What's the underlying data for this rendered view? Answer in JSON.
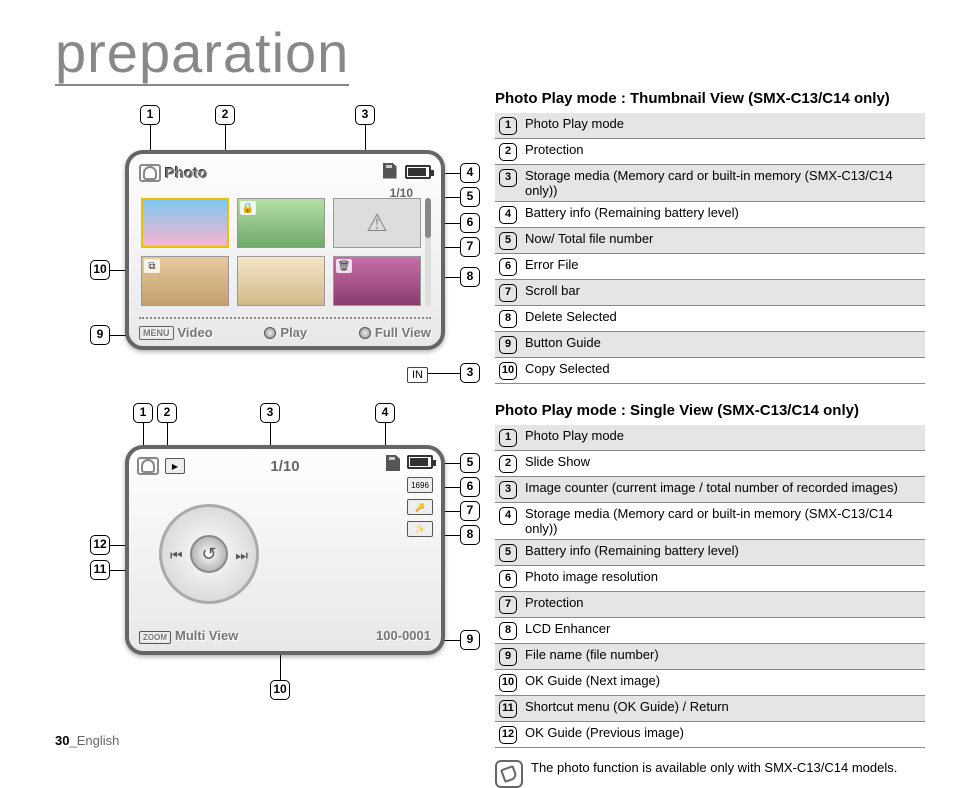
{
  "page_title": "preparation",
  "page_number": "30",
  "page_lang": "English",
  "screen1": {
    "mode_label": "Photo",
    "counter": "1/10",
    "guide": {
      "video": "Video",
      "play": "Play",
      "fullview": "Full View"
    },
    "in_tag": "IN",
    "warn_glyph": "⚠"
  },
  "screen2": {
    "counter": "1/10",
    "res_label": "1696",
    "multiview": "Multi View",
    "filename": "100-0001",
    "return_glyph": "↺"
  },
  "section1": {
    "title": "Photo Play mode : Thumbnail View (SMX-C13/C14 only)",
    "rows": [
      "Photo Play mode",
      "Protection",
      "Storage media (Memory card or built-in memory (SMX-C13/C14 only))",
      "Battery info (Remaining battery level)",
      "Now/ Total file number",
      "Error File",
      "Scroll bar",
      "Delete Selected",
      "Button Guide",
      "Copy Selected"
    ]
  },
  "section2": {
    "title": "Photo Play mode : Single View (SMX-C13/C14 only)",
    "rows": [
      "Photo Play mode",
      "Slide Show",
      "Image counter\n(current image / total number of recorded images)",
      "Storage media (Memory card or built-in memory (SMX-C13/C14 only))",
      "Battery info (Remaining battery level)",
      "Photo image resolution",
      "Protection",
      "LCD Enhancer",
      "File name (file number)",
      "OK Guide (Next image)",
      "Shortcut menu (OK Guide) / Return",
      "OK Guide (Previous image)"
    ]
  },
  "note": "The photo function is available only with SMX-C13/C14 models.",
  "colors": {
    "title_grey": "#888888",
    "zebra_bg": "#e5e5e5",
    "border": "#888888",
    "screen_border": "#666666",
    "selected_thumb": "#e6c200"
  }
}
